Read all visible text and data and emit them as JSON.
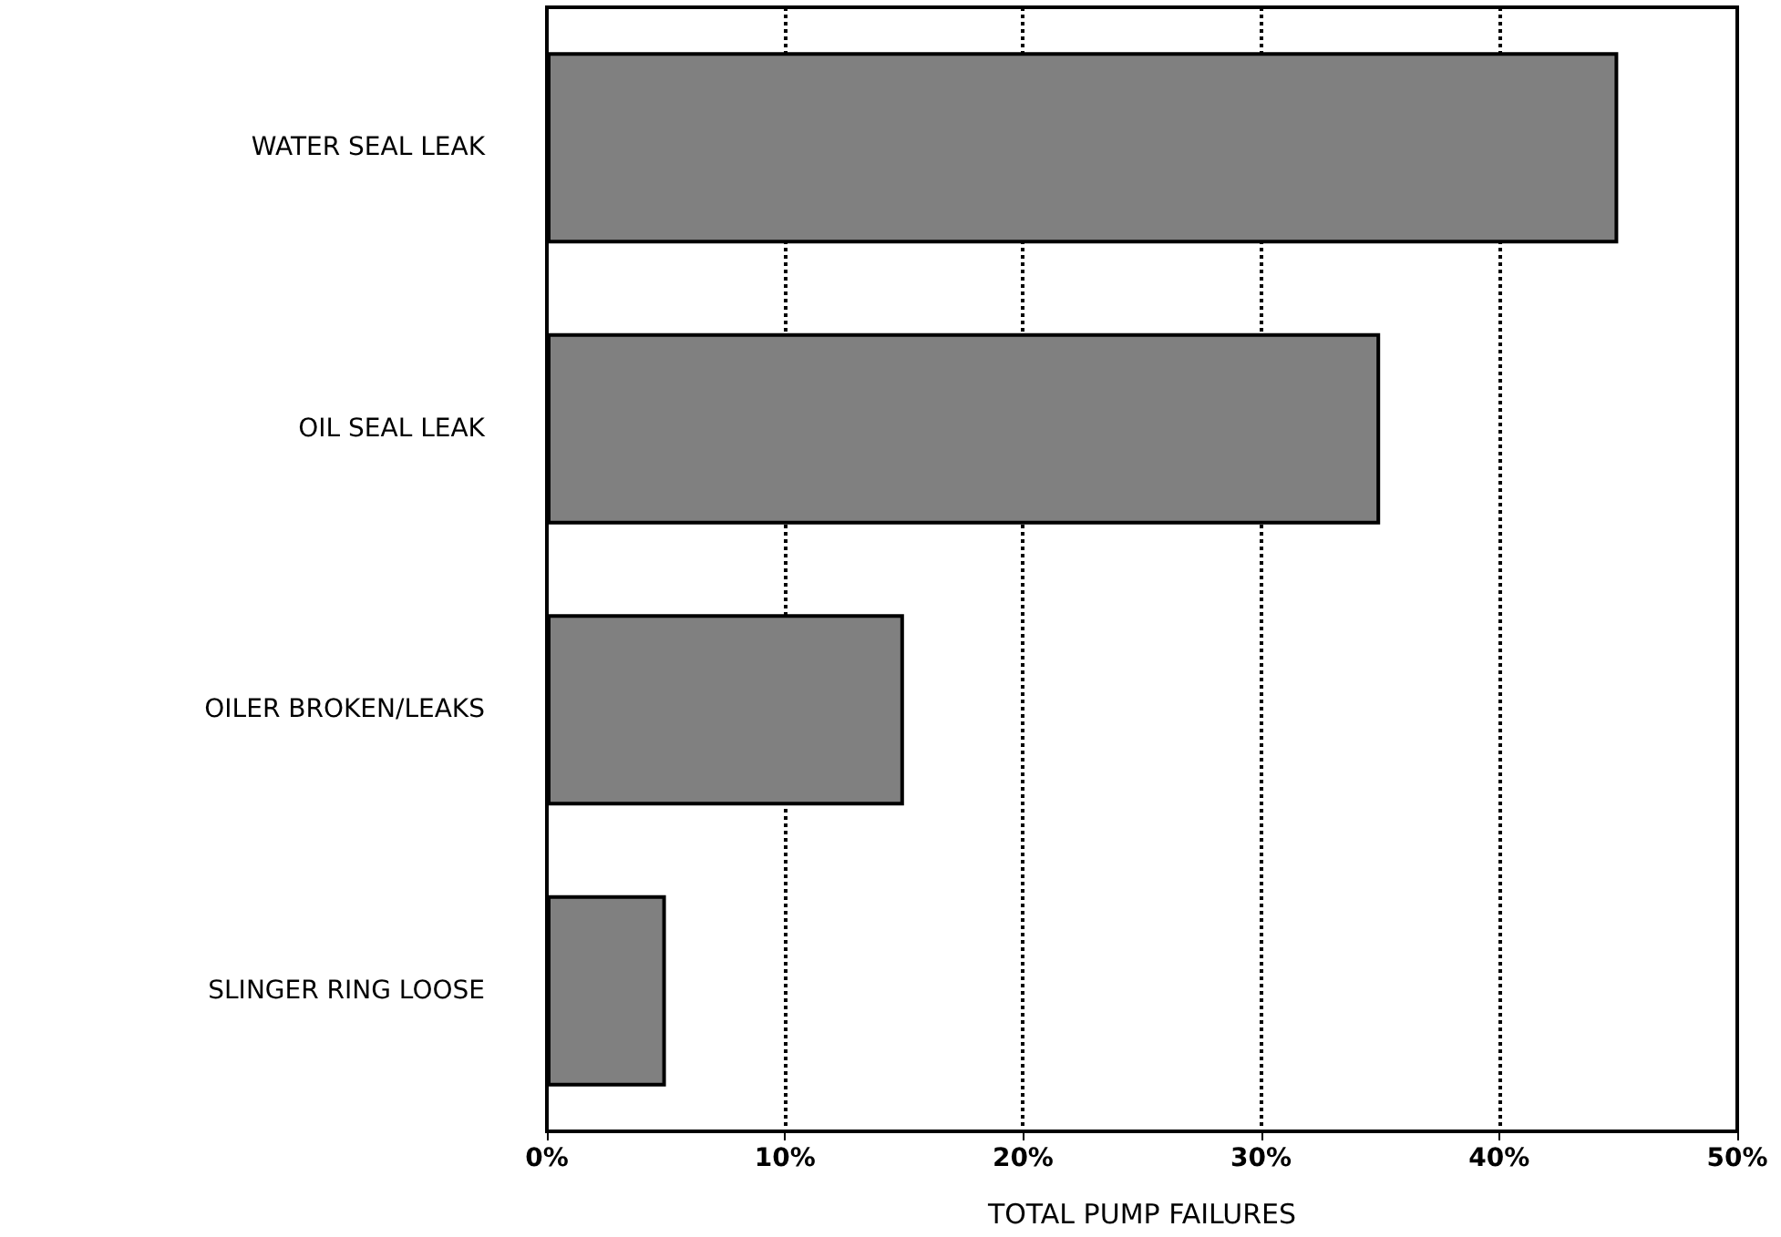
{
  "chart_data": {
    "type": "bar",
    "orientation": "horizontal",
    "xlabel": "TOTAL PUMP FAILURES",
    "categories": [
      "WATER SEAL LEAK",
      "OIL SEAL LEAK",
      "OILER BROKEN/LEAKS",
      "SLINGER RING LOOSE"
    ],
    "values": [
      45,
      35,
      15,
      5
    ],
    "color": "#808080",
    "xlim": [
      0,
      50
    ],
    "xticks": [
      {
        "value": 0,
        "label": "0%"
      },
      {
        "value": 10,
        "label": "10%"
      },
      {
        "value": 20,
        "label": "20%"
      },
      {
        "value": 30,
        "label": "30%"
      },
      {
        "value": 40,
        "label": "40%"
      },
      {
        "value": 50,
        "label": "50%"
      }
    ],
    "grid": "x"
  }
}
